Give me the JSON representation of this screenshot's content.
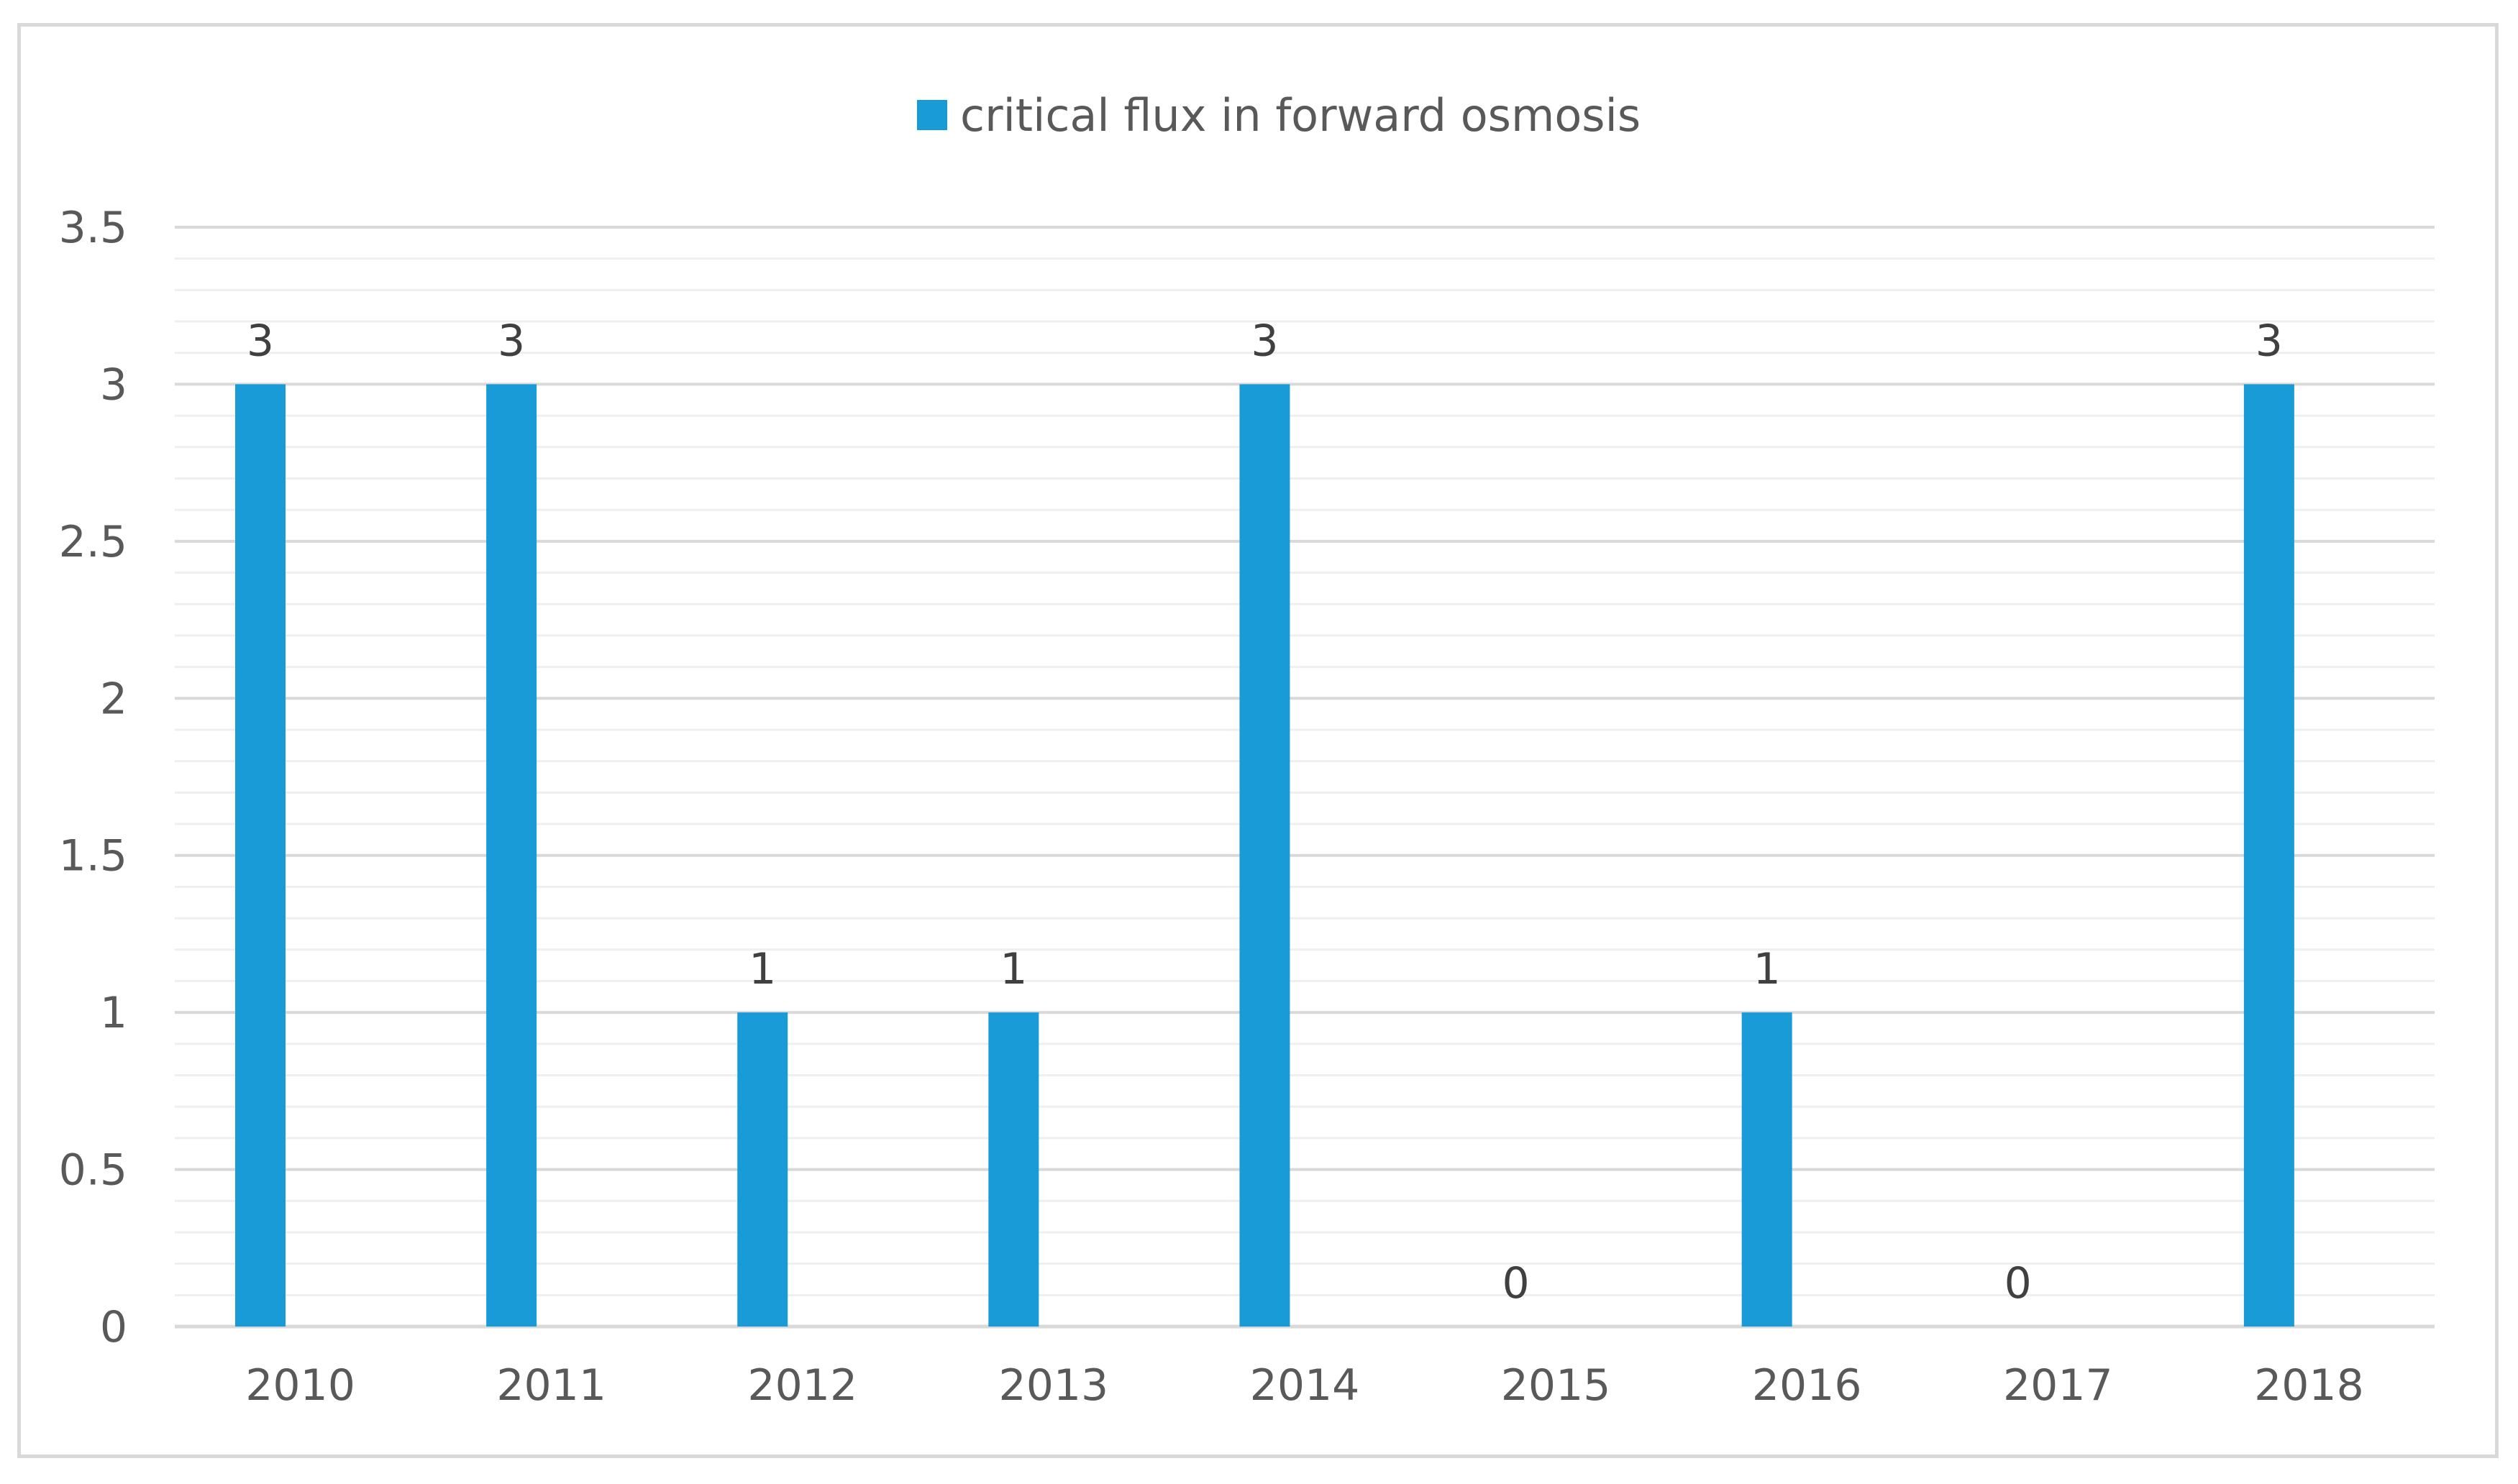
{
  "chart_data": {
    "type": "bar",
    "categories": [
      "2010",
      "2011",
      "2012",
      "2013",
      "2014",
      "2015",
      "2016",
      "2017",
      "2018"
    ],
    "series": [
      {
        "name": "critical flux in forward osmosis",
        "values": [
          3,
          3,
          1,
          1,
          3,
          0,
          1,
          0,
          3
        ],
        "color": "#189bd7"
      }
    ],
    "title": "",
    "xlabel": "",
    "ylabel": "",
    "ylim": [
      0,
      3.5
    ],
    "yticks": [
      0,
      0.5,
      1,
      1.5,
      2,
      2.5,
      3,
      3.5
    ],
    "ytick_labels": [
      "0",
      "0.5",
      "1",
      "1.5",
      "2",
      "2.5",
      "3",
      "3.5"
    ],
    "minor_ytick_step": 0.1,
    "data_labels": true,
    "grid": true,
    "legend_position": "top-center",
    "gridline_color": "#d9d9d9",
    "minor_gridline_color": "#efefef",
    "axis_line_color": "#d9d9d9"
  }
}
